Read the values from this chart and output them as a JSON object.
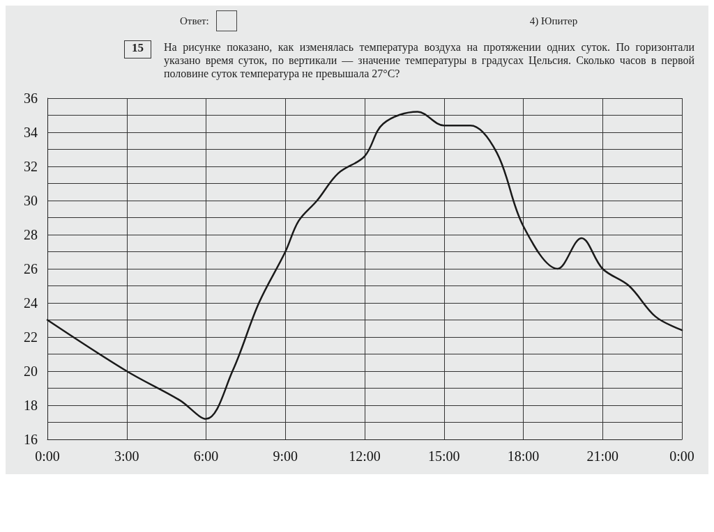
{
  "chart_data": {
    "type": "line",
    "title": "На рисунке показано, как изменялась температура воздуха на протяжении одних суток. По горизонтали указано время суток, по вертикали — значение температуры в градусах Цельсия. Сколько часов в первой половине суток температура не превышала 27°C?",
    "annotations": [
      "Ответ:",
      "4) Юпитер",
      "15"
    ],
    "series": [
      {
        "color": "#1a1a1a",
        "x": [
          0,
          3,
          5,
          6,
          7,
          8,
          9,
          9.5,
          10.2,
          11,
          12,
          12.7,
          14,
          15,
          16,
          17,
          18,
          19.3,
          20.2,
          21,
          22,
          23,
          24
        ],
        "values": [
          23,
          20,
          18.3,
          17.2,
          20,
          24,
          27,
          28.8,
          30,
          31.6,
          32.6,
          34.5,
          35.2,
          34.4,
          34.4,
          32.8,
          28.5,
          26,
          27.8,
          26,
          25,
          23.2,
          22.4
        ]
      }
    ],
    "xlim": [
      0,
      24
    ],
    "xticks": [
      {
        "value": 0,
        "label": "0:00"
      },
      {
        "value": 3,
        "label": "3:00"
      },
      {
        "value": 6,
        "label": "6:00"
      },
      {
        "value": 9,
        "label": "9:00"
      },
      {
        "value": 12,
        "label": "12:00"
      },
      {
        "value": 15,
        "label": "15:00"
      },
      {
        "value": 18,
        "label": "18:00"
      },
      {
        "value": 21,
        "label": "21:00"
      },
      {
        "value": 24,
        "label": "0:00"
      }
    ],
    "ylim": [
      16,
      36
    ],
    "yticks": [
      16,
      {
        "value": 17,
        "label": null
      },
      18,
      {
        "value": 19,
        "label": null
      },
      20,
      {
        "value": 21,
        "label": null
      },
      22,
      {
        "value": 23,
        "label": null
      },
      24,
      {
        "value": 25,
        "label": null
      },
      26,
      {
        "value": 27,
        "label": null
      },
      28,
      {
        "value": 29,
        "label": null
      },
      30,
      {
        "value": 31,
        "label": null
      },
      32,
      {
        "value": 33,
        "label": null
      },
      34,
      {
        "value": 35,
        "label": null
      },
      36
    ],
    "grid": true,
    "marker": "none",
    "line_style": "solid"
  }
}
